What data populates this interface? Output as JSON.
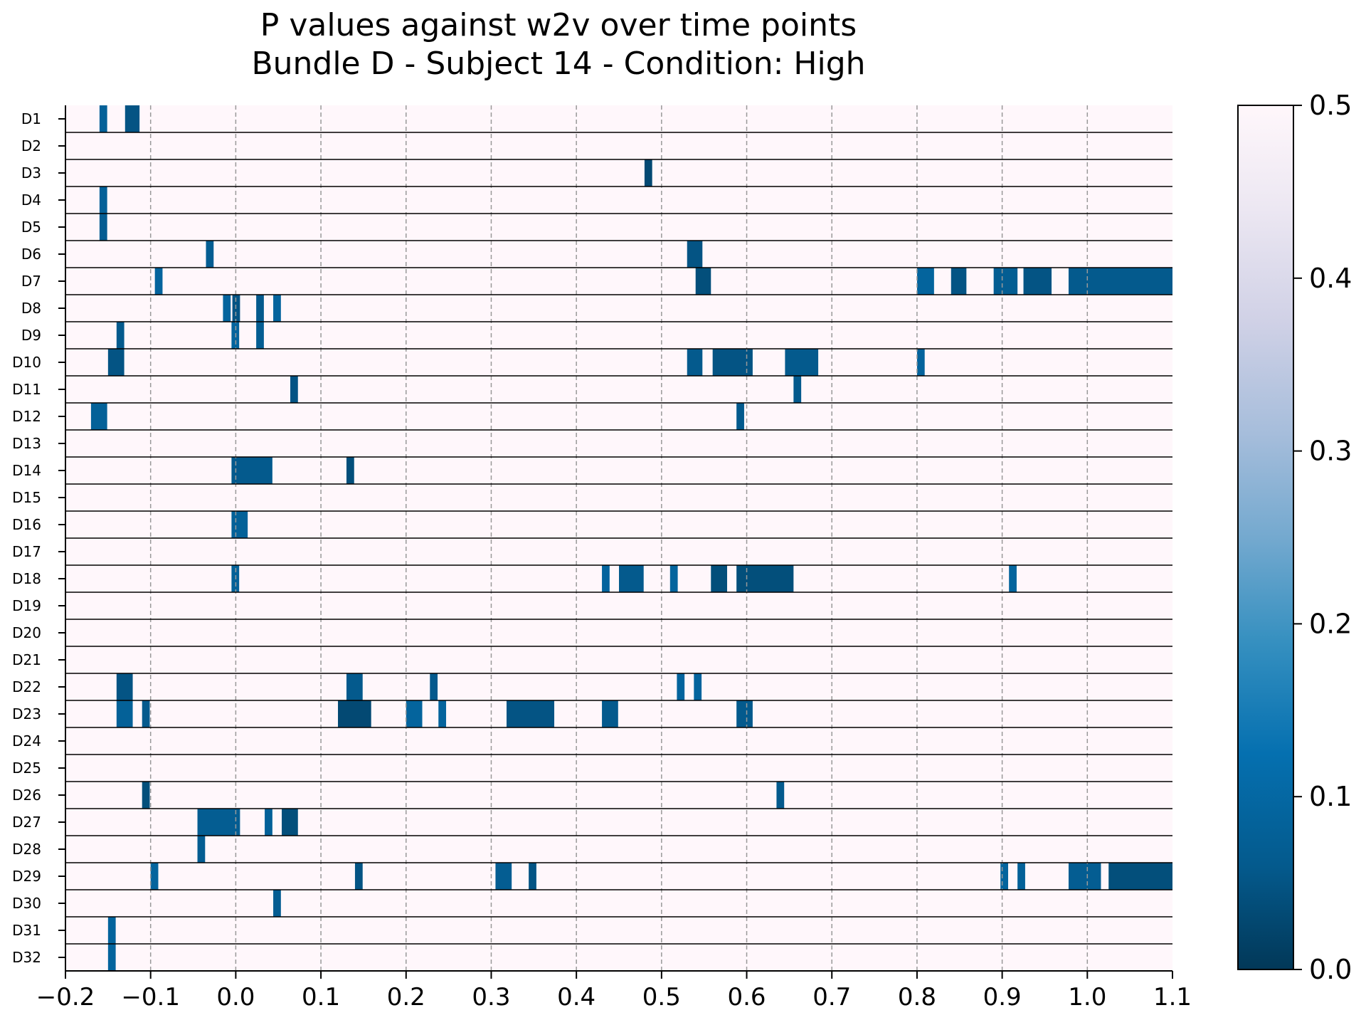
{
  "chart_data": {
    "type": "heatmap",
    "title": [
      "P values against w2v over time points",
      "Bundle D - Subject 14 - Condition: High"
    ],
    "xlabel": "",
    "ylabel": "",
    "xlim": [
      -0.2,
      1.1
    ],
    "x_ticks": [
      "−0.2",
      "−0.1",
      "0.0",
      "0.1",
      "0.2",
      "0.3",
      "0.4",
      "0.5",
      "0.6",
      "0.7",
      "0.8",
      "0.9",
      "1.0",
      "1.1"
    ],
    "x_tick_values": [
      -0.2,
      -0.1,
      0.0,
      0.1,
      0.2,
      0.3,
      0.4,
      0.5,
      0.6,
      0.7,
      0.8,
      0.9,
      1.0,
      1.1
    ],
    "grid": "vertical dashed",
    "colorbar": {
      "range": [
        0.0,
        0.5
      ],
      "ticks": [
        "0.0",
        "0.1",
        "0.2",
        "0.3",
        "0.4",
        "0.5"
      ],
      "tick_values": [
        0.0,
        0.1,
        0.2,
        0.3,
        0.4,
        0.5
      ],
      "colormap": "PuBu_r",
      "placement": "right"
    },
    "background_value": 0.5,
    "rows": [
      {
        "label": "D1",
        "segments": [
          [
            -0.16,
            -0.151,
            0.08
          ],
          [
            -0.13,
            -0.113,
            0.05
          ]
        ]
      },
      {
        "label": "D2",
        "segments": []
      },
      {
        "label": "D3",
        "segments": [
          [
            0.48,
            0.489,
            0.03
          ]
        ]
      },
      {
        "label": "D4",
        "segments": [
          [
            -0.16,
            -0.151,
            0.08
          ]
        ]
      },
      {
        "label": "D5",
        "segments": [
          [
            -0.16,
            -0.151,
            0.07
          ]
        ]
      },
      {
        "label": "D6",
        "segments": [
          [
            -0.035,
            -0.026,
            0.07
          ],
          [
            0.53,
            0.548,
            0.05
          ]
        ]
      },
      {
        "label": "D7",
        "segments": [
          [
            -0.095,
            -0.086,
            0.09
          ],
          [
            0.54,
            0.558,
            0.04
          ],
          [
            0.8,
            0.82,
            0.09
          ],
          [
            0.84,
            0.858,
            0.05
          ],
          [
            0.89,
            0.918,
            0.07
          ],
          [
            0.925,
            0.958,
            0.05
          ],
          [
            0.978,
            1.1,
            0.06
          ]
        ]
      },
      {
        "label": "D8",
        "segments": [
          [
            -0.015,
            -0.006,
            0.09
          ],
          [
            -0.004,
            0.005,
            0.05
          ],
          [
            0.024,
            0.033,
            0.06
          ],
          [
            0.044,
            0.053,
            0.09
          ]
        ]
      },
      {
        "label": "D9",
        "segments": [
          [
            -0.14,
            -0.131,
            0.06
          ],
          [
            -0.005,
            0.004,
            0.09
          ],
          [
            0.024,
            0.033,
            0.07
          ]
        ]
      },
      {
        "label": "D10",
        "segments": [
          [
            -0.15,
            -0.131,
            0.05
          ],
          [
            0.53,
            0.548,
            0.06
          ],
          [
            0.56,
            0.607,
            0.05
          ],
          [
            0.645,
            0.684,
            0.06
          ],
          [
            0.8,
            0.809,
            0.09
          ]
        ]
      },
      {
        "label": "D11",
        "segments": [
          [
            0.064,
            0.073,
            0.05
          ],
          [
            0.655,
            0.664,
            0.06
          ]
        ]
      },
      {
        "label": "D12",
        "segments": [
          [
            -0.17,
            -0.151,
            0.08
          ],
          [
            0.588,
            0.597,
            0.06
          ]
        ]
      },
      {
        "label": "D13",
        "segments": []
      },
      {
        "label": "D14",
        "segments": [
          [
            -0.005,
            0.043,
            0.06
          ],
          [
            0.13,
            0.139,
            0.04
          ]
        ]
      },
      {
        "label": "D15",
        "segments": []
      },
      {
        "label": "D16",
        "segments": [
          [
            -0.005,
            0.014,
            0.08
          ]
        ]
      },
      {
        "label": "D17",
        "segments": []
      },
      {
        "label": "D18",
        "segments": [
          [
            -0.005,
            0.004,
            0.08
          ],
          [
            0.43,
            0.439,
            0.09
          ],
          [
            0.45,
            0.479,
            0.06
          ],
          [
            0.51,
            0.519,
            0.09
          ],
          [
            0.558,
            0.577,
            0.04
          ],
          [
            0.588,
            0.655,
            0.04
          ],
          [
            0.908,
            0.917,
            0.09
          ]
        ]
      },
      {
        "label": "D19",
        "segments": []
      },
      {
        "label": "D20",
        "segments": []
      },
      {
        "label": "D21",
        "segments": []
      },
      {
        "label": "D22",
        "segments": [
          [
            -0.14,
            -0.121,
            0.05
          ],
          [
            0.13,
            0.149,
            0.06
          ],
          [
            0.228,
            0.237,
            0.06
          ],
          [
            0.518,
            0.527,
            0.09
          ],
          [
            0.538,
            0.547,
            0.09
          ]
        ]
      },
      {
        "label": "D23",
        "segments": [
          [
            -0.14,
            -0.121,
            0.08
          ],
          [
            -0.11,
            -0.101,
            0.06
          ],
          [
            0.12,
            0.159,
            0.03
          ],
          [
            0.2,
            0.219,
            0.09
          ],
          [
            0.238,
            0.247,
            0.09
          ],
          [
            0.318,
            0.374,
            0.05
          ],
          [
            0.43,
            0.449,
            0.06
          ],
          [
            0.588,
            0.607,
            0.06
          ]
        ]
      },
      {
        "label": "D24",
        "segments": []
      },
      {
        "label": "D25",
        "segments": []
      },
      {
        "label": "D26",
        "segments": [
          [
            -0.11,
            -0.101,
            0.04
          ],
          [
            0.635,
            0.644,
            0.06
          ]
        ]
      },
      {
        "label": "D27",
        "segments": [
          [
            -0.045,
            0.005,
            0.07
          ],
          [
            0.034,
            0.043,
            0.08
          ],
          [
            0.054,
            0.073,
            0.04
          ]
        ]
      },
      {
        "label": "D28",
        "segments": [
          [
            -0.045,
            -0.036,
            0.07
          ]
        ]
      },
      {
        "label": "D29",
        "segments": [
          [
            -0.1,
            -0.091,
            0.09
          ],
          [
            0.14,
            0.149,
            0.05
          ],
          [
            0.305,
            0.324,
            0.07
          ],
          [
            0.344,
            0.353,
            0.05
          ],
          [
            0.898,
            0.907,
            0.09
          ],
          [
            0.918,
            0.927,
            0.08
          ],
          [
            0.978,
            1.016,
            0.07
          ],
          [
            1.025,
            1.1,
            0.04
          ]
        ]
      },
      {
        "label": "D30",
        "segments": [
          [
            0.044,
            0.053,
            0.07
          ]
        ]
      },
      {
        "label": "D31",
        "segments": [
          [
            -0.15,
            -0.141,
            0.09
          ]
        ]
      },
      {
        "label": "D32",
        "segments": [
          [
            -0.15,
            -0.141,
            0.09
          ]
        ]
      }
    ]
  }
}
